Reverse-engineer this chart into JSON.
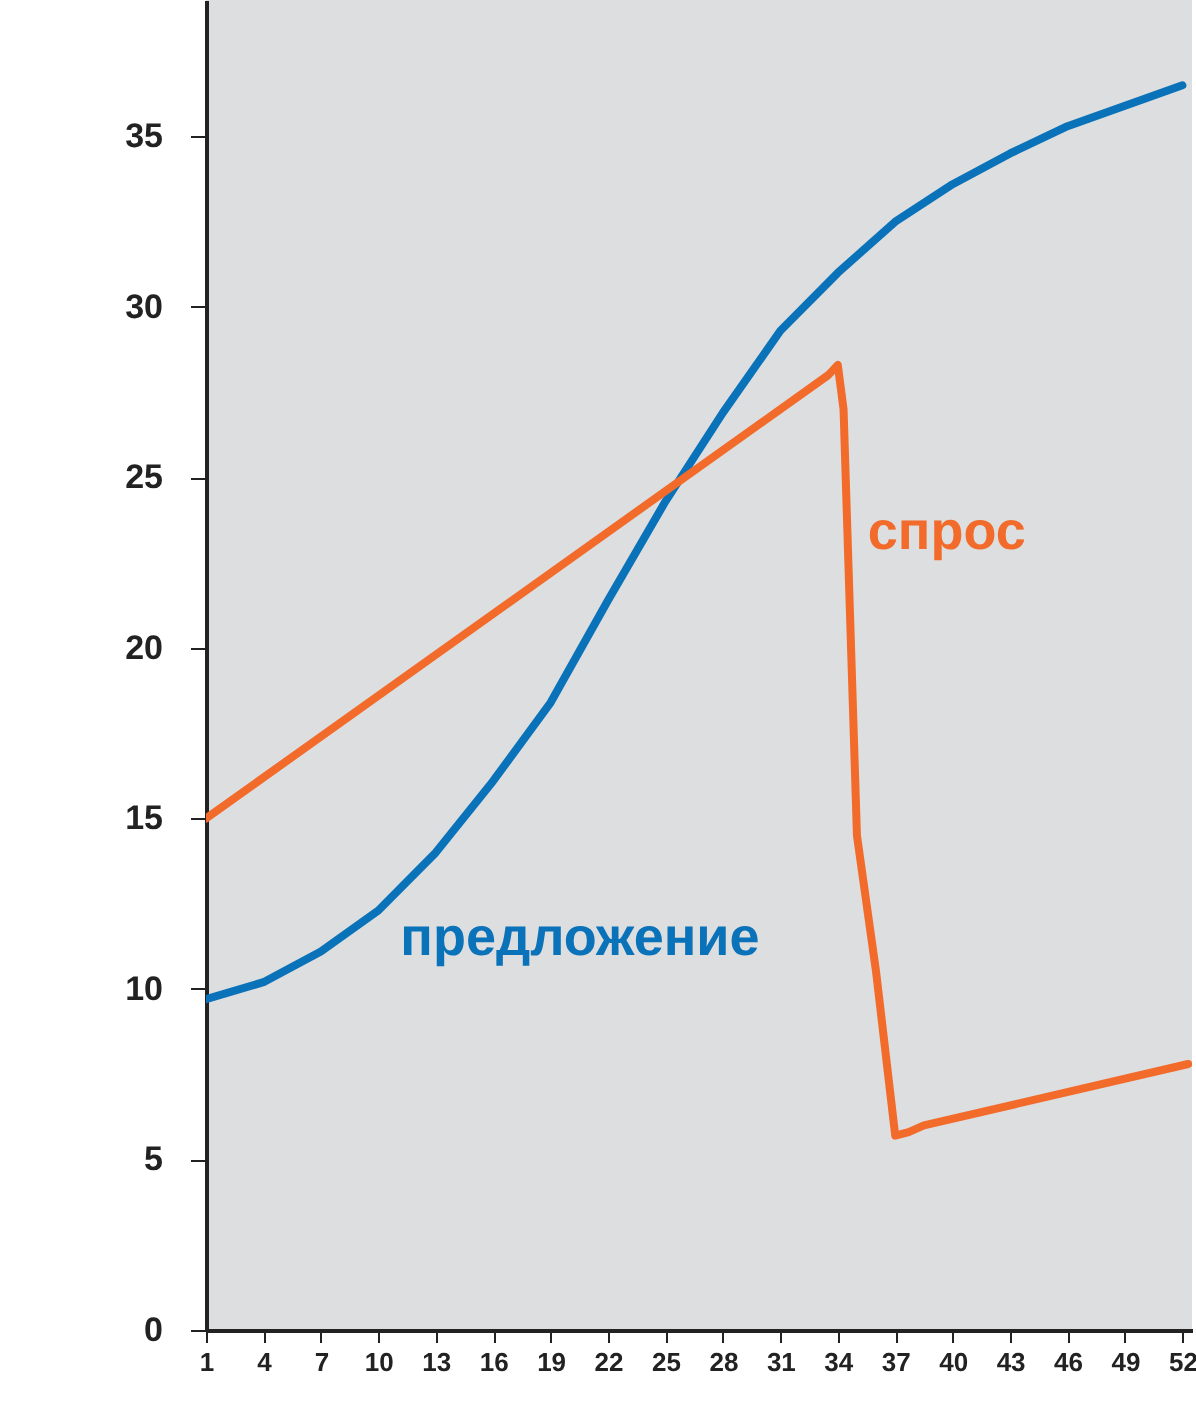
{
  "chart_data": {
    "type": "line",
    "xlim": [
      1,
      52.5
    ],
    "xticks": [
      1,
      4,
      7,
      10,
      13,
      16,
      19,
      22,
      25,
      28,
      31,
      34,
      37,
      40,
      43,
      46,
      49,
      52
    ],
    "ylim": [
      0,
      39
    ],
    "yticks": [
      0,
      5,
      10,
      15,
      20,
      25,
      30,
      35
    ],
    "series": [
      {
        "name": "предложение",
        "color": "#0a72b8",
        "x": [
          1,
          4,
          7,
          10,
          13,
          16,
          19,
          22,
          25,
          28,
          31,
          34,
          37,
          40,
          43,
          46,
          49,
          52
        ],
        "values": [
          9.7,
          10.2,
          11.1,
          12.3,
          14.0,
          16.1,
          18.4,
          21.4,
          24.3,
          26.9,
          29.3,
          31.0,
          32.5,
          33.6,
          34.5,
          35.3,
          35.9,
          36.5
        ]
      },
      {
        "name": "спрос",
        "color": "#f26b2a",
        "x": [
          1,
          33.5,
          34,
          34.3,
          35,
          36,
          37,
          37.7,
          38.5,
          52.3
        ],
        "values": [
          15,
          28,
          28.3,
          27,
          14.5,
          10.5,
          5.7,
          5.8,
          6.0,
          7.8
        ]
      }
    ]
  }
}
